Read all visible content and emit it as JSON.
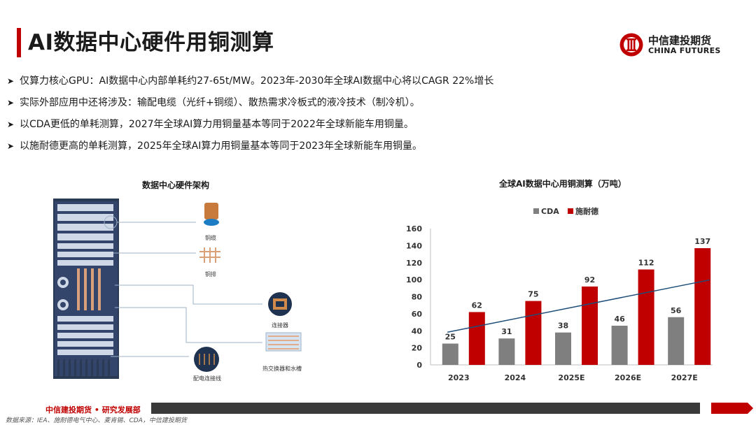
{
  "page": {
    "title": "AI数据中心硬件用铜测算",
    "logo_cn": "中信建投期货",
    "logo_en": "CHINA FUTURES"
  },
  "bullets": [
    "仅算力核心GPU：AI数据中心内部单耗约27-65t/MW。2023年-2030年全球AI数据中心将以CAGR 22%增长",
    "实际外部应用中还将涉及：输配电缆（光纤+铜缆）、散热需求冷板式的液冷技术（制冷机）。",
    "以CDA更低的单耗测算，2027年全球AI算力用铜量基本等同于2022年全球新能车用铜量。",
    "以施耐德更高的单耗测算，2025年全球AI算力用铜量基本等同于2023年全球新能车用铜量。"
  ],
  "diagram": {
    "title": "数据中心硬件架构",
    "components": [
      "铜缆",
      "铜排",
      "连接器",
      "热交换器和水槽",
      "配电连接线"
    ]
  },
  "chart_data": {
    "type": "bar",
    "title": "全球AI数据中心用铜测算（万吨）",
    "categories": [
      "2023",
      "2024",
      "2025E",
      "2026E",
      "2027E"
    ],
    "series": [
      {
        "name": "CDA",
        "values": [
          25,
          31,
          38,
          46,
          56
        ],
        "color": "#7f7f7f"
      },
      {
        "name": "施耐德",
        "values": [
          62,
          75,
          92,
          112,
          137
        ],
        "color": "#c00000"
      }
    ],
    "trendline": {
      "color": "#1f4e79"
    },
    "ylim": [
      0,
      160
    ],
    "yticks": [
      0,
      20,
      40,
      60,
      80,
      100,
      120,
      140,
      160
    ],
    "legend": "top",
    "grid": false
  },
  "footer": {
    "org": "中信建投期货 • 研究发展部",
    "source": "数据来源：IEA、施耐德电气中心、麦肯锡、CDA，中信建投期货"
  }
}
